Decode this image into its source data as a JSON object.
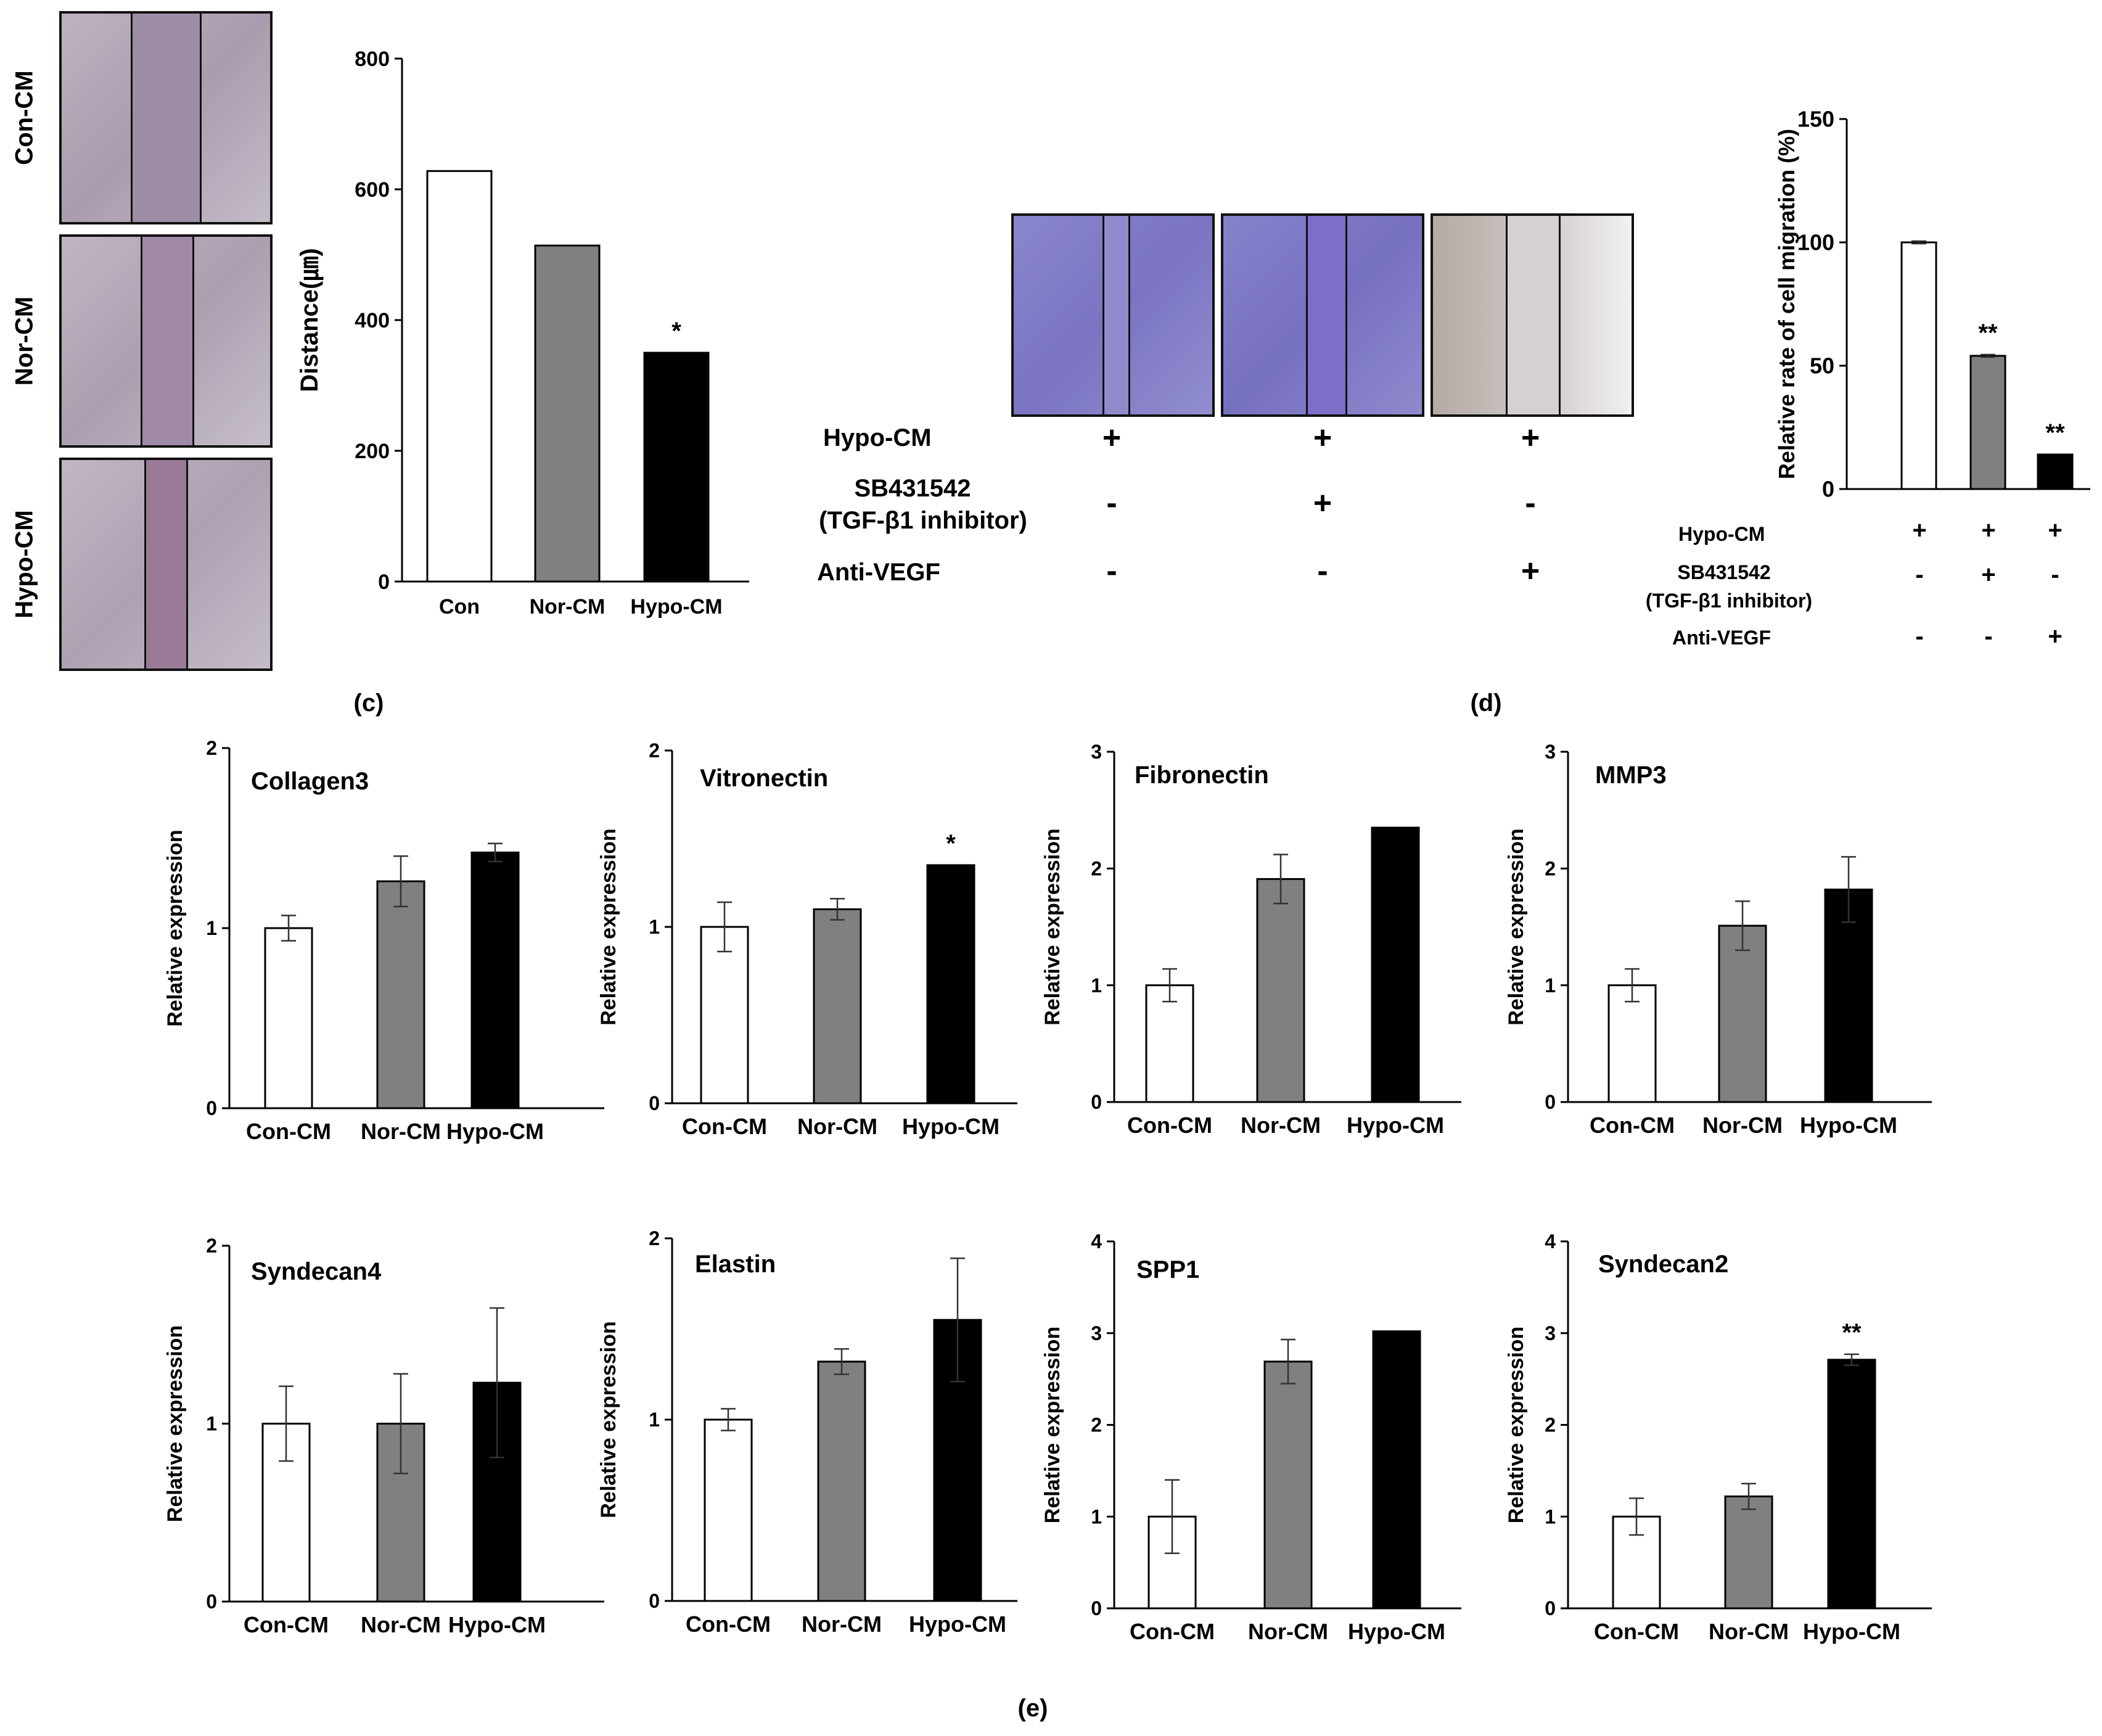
{
  "panel_c": {
    "label": "(c)",
    "image_rows": [
      "Con-CM",
      "Nor-CM",
      "Hypo-CM"
    ]
  },
  "panel_d": {
    "label": "(d)",
    "conditions": [
      {
        "label": "Hypo-CM",
        "values": [
          "+",
          "+",
          "+"
        ]
      },
      {
        "label": "SB431542",
        "label2": "(TGF-β1 inhibitor)",
        "values": [
          "-",
          "+",
          "-"
        ]
      },
      {
        "label": "Anti-VEGF",
        "values": [
          "-",
          "-",
          "+"
        ]
      }
    ]
  },
  "panel_e": {
    "label": "(e)"
  },
  "colors": {
    "con": "#ffffff",
    "nor": "#808080",
    "hypo": "#000000",
    "axis": "#000000"
  },
  "chart_data": [
    {
      "id": "distance",
      "type": "bar",
      "title": "",
      "ylabel": "Distance(㎛)",
      "xlabel": "",
      "categories": [
        "Con",
        "Nor-CM",
        "Hypo-CM"
      ],
      "values": [
        628,
        514,
        350
      ],
      "errors": [
        0,
        0,
        0
      ],
      "annotations": [
        "",
        "",
        "*"
      ],
      "ylim": [
        0,
        800
      ],
      "yticks": [
        0,
        200,
        400,
        600,
        800
      ]
    },
    {
      "id": "migration",
      "type": "bar",
      "title": "",
      "ylabel": "Relative rate of cell migration (%)",
      "xlabel": "",
      "categories": [
        "Hypo-CM",
        "Hypo-CM + SB431542",
        "Hypo-CM + Anti-VEGF"
      ],
      "values": [
        100,
        54,
        14
      ],
      "errors": [
        0.5,
        0.5,
        0
      ],
      "annotations": [
        "",
        "**",
        "**"
      ],
      "ylim": [
        0,
        150
      ],
      "yticks": [
        0,
        50,
        100,
        150
      ]
    },
    {
      "id": "collagen3",
      "type": "bar",
      "title": "Collagen3",
      "ylabel": "Relative expression",
      "categories": [
        "Con-CM",
        "Nor-CM",
        "Hypo-CM"
      ],
      "values": [
        1.0,
        1.26,
        1.42
      ],
      "errors": [
        0.07,
        0.14,
        0.05
      ],
      "annotations": [
        "",
        "",
        ""
      ],
      "ylim": [
        0,
        2
      ],
      "yticks": [
        0,
        1,
        2
      ]
    },
    {
      "id": "vitronectin",
      "type": "bar",
      "title": "Vitronectin",
      "ylabel": "Relative expression",
      "categories": [
        "Con-CM",
        "Nor-CM",
        "Hypo-CM"
      ],
      "values": [
        1.0,
        1.1,
        1.35
      ],
      "errors": [
        0.14,
        0.06,
        0
      ],
      "annotations": [
        "",
        "",
        "*"
      ],
      "ylim": [
        0,
        2
      ],
      "yticks": [
        0,
        1,
        2
      ]
    },
    {
      "id": "fibronectin",
      "type": "bar",
      "title": "Fibronectin",
      "ylabel": "Relative expression",
      "categories": [
        "Con-CM",
        "Nor-CM",
        "Hypo-CM"
      ],
      "values": [
        1.0,
        1.91,
        2.35
      ],
      "errors": [
        0.14,
        0.21,
        0
      ],
      "annotations": [
        "",
        "",
        ""
      ],
      "ylim": [
        0,
        3
      ],
      "yticks": [
        0,
        1,
        2,
        3
      ]
    },
    {
      "id": "mmp3",
      "type": "bar",
      "title": "MMP3",
      "ylabel": "Relative expression",
      "categories": [
        "Con-CM",
        "Nor-CM",
        "Hypo-CM"
      ],
      "values": [
        1.0,
        1.51,
        1.82
      ],
      "errors": [
        0.14,
        0.21,
        0.28
      ],
      "annotations": [
        "",
        "",
        ""
      ],
      "ylim": [
        0,
        3
      ],
      "yticks": [
        0,
        1,
        2,
        3
      ]
    },
    {
      "id": "syndecan4",
      "type": "bar",
      "title": "Syndecan4",
      "ylabel": "Relative expression",
      "categories": [
        "Con-CM",
        "Nor-CM",
        "Hypo-CM"
      ],
      "values": [
        1.0,
        1.0,
        1.23
      ],
      "errors": [
        0.21,
        0.28,
        0.42
      ],
      "annotations": [
        "",
        "",
        ""
      ],
      "ylim": [
        0,
        2
      ],
      "yticks": [
        0,
        1,
        2
      ]
    },
    {
      "id": "elastin",
      "type": "bar",
      "title": "Elastin",
      "ylabel": "Relative expression",
      "categories": [
        "Con-CM",
        "Nor-CM",
        "Hypo-CM"
      ],
      "values": [
        1.0,
        1.32,
        1.55
      ],
      "errors": [
        0.06,
        0.07,
        0.34
      ],
      "annotations": [
        "",
        "",
        ""
      ],
      "ylim": [
        0,
        2
      ],
      "yticks": [
        0,
        1,
        2
      ]
    },
    {
      "id": "spp1",
      "type": "bar",
      "title": "SPP1",
      "ylabel": "Relative expression",
      "categories": [
        "Con-CM",
        "Nor-CM",
        "Hypo-CM"
      ],
      "values": [
        1.0,
        2.69,
        3.02
      ],
      "errors": [
        0.4,
        0.24,
        0
      ],
      "annotations": [
        "",
        "",
        ""
      ],
      "ylim": [
        0,
        4
      ],
      "yticks": [
        0,
        1,
        2,
        3,
        4
      ]
    },
    {
      "id": "syndecan2",
      "type": "bar",
      "title": "Syndecan2",
      "ylabel": "Relative expression",
      "categories": [
        "Con-CM",
        "Nor-CM",
        "Hypo-CM"
      ],
      "values": [
        1.0,
        1.22,
        2.71
      ],
      "errors": [
        0.2,
        0.14,
        0.06
      ],
      "annotations": [
        "",
        "",
        "**"
      ],
      "ylim": [
        0,
        4
      ],
      "yticks": [
        0,
        1,
        2,
        3,
        4
      ]
    }
  ]
}
